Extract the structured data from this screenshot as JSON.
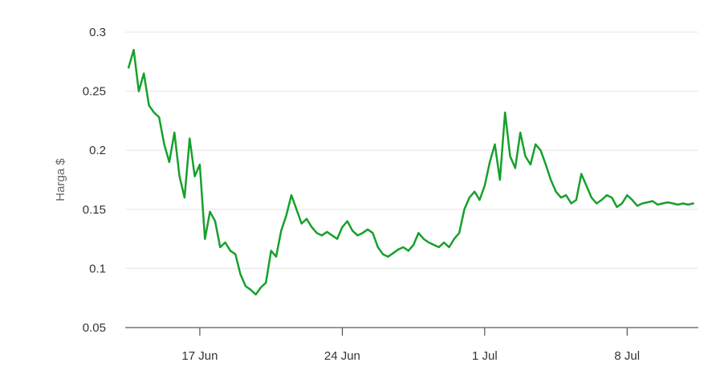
{
  "chart_data": {
    "type": "line",
    "title": "",
    "xlabel": "",
    "ylabel": "Harga $",
    "ylim": [
      0.05,
      0.3
    ],
    "yticks": [
      0.05,
      0.1,
      0.15,
      0.2,
      0.25,
      0.3
    ],
    "ytick_labels": [
      "0.05",
      "0.1",
      "0.15",
      "0.2",
      "0.25",
      "0.3"
    ],
    "xlim": [
      "2024-06-13T08:00",
      "2024-07-11T12:00"
    ],
    "xticks": [
      "2024-06-17",
      "2024-06-24",
      "2024-07-01",
      "2024-07-08"
    ],
    "xtick_labels": [
      "17 Jun",
      "24 Jun",
      "1 Jul",
      "8 Jul"
    ],
    "grid": true,
    "line_color": "#16a12b",
    "series": [
      {
        "name": "",
        "x": [
          "2024-06-13T12:00",
          "2024-06-13T18:00",
          "2024-06-14T00:00",
          "2024-06-14T06:00",
          "2024-06-14T12:00",
          "2024-06-14T18:00",
          "2024-06-15T00:00",
          "2024-06-15T06:00",
          "2024-06-15T12:00",
          "2024-06-15T18:00",
          "2024-06-16T00:00",
          "2024-06-16T06:00",
          "2024-06-16T12:00",
          "2024-06-16T18:00",
          "2024-06-17T00:00",
          "2024-06-17T06:00",
          "2024-06-17T12:00",
          "2024-06-17T18:00",
          "2024-06-18T00:00",
          "2024-06-18T06:00",
          "2024-06-18T12:00",
          "2024-06-18T18:00",
          "2024-06-19T00:00",
          "2024-06-19T06:00",
          "2024-06-19T12:00",
          "2024-06-19T18:00",
          "2024-06-20T00:00",
          "2024-06-20T06:00",
          "2024-06-20T12:00",
          "2024-06-20T18:00",
          "2024-06-21T00:00",
          "2024-06-21T06:00",
          "2024-06-21T12:00",
          "2024-06-21T18:00",
          "2024-06-22T00:00",
          "2024-06-22T06:00",
          "2024-06-22T12:00",
          "2024-06-22T18:00",
          "2024-06-23T00:00",
          "2024-06-23T06:00",
          "2024-06-23T12:00",
          "2024-06-23T18:00",
          "2024-06-24T00:00",
          "2024-06-24T06:00",
          "2024-06-24T12:00",
          "2024-06-24T18:00",
          "2024-06-25T00:00",
          "2024-06-25T06:00",
          "2024-06-25T12:00",
          "2024-06-25T18:00",
          "2024-06-26T00:00",
          "2024-06-26T06:00",
          "2024-06-26T12:00",
          "2024-06-26T18:00",
          "2024-06-27T00:00",
          "2024-06-27T06:00",
          "2024-06-27T12:00",
          "2024-06-27T18:00",
          "2024-06-28T00:00",
          "2024-06-28T06:00",
          "2024-06-28T12:00",
          "2024-06-28T18:00",
          "2024-06-29T00:00",
          "2024-06-29T06:00",
          "2024-06-29T12:00",
          "2024-06-29T18:00",
          "2024-06-30T00:00",
          "2024-06-30T06:00",
          "2024-06-30T12:00",
          "2024-06-30T18:00",
          "2024-07-01T00:00",
          "2024-07-01T06:00",
          "2024-07-01T12:00",
          "2024-07-01T18:00",
          "2024-07-02T00:00",
          "2024-07-02T06:00",
          "2024-07-02T12:00",
          "2024-07-02T18:00",
          "2024-07-03T00:00",
          "2024-07-03T06:00",
          "2024-07-03T12:00",
          "2024-07-03T18:00",
          "2024-07-04T00:00",
          "2024-07-04T06:00",
          "2024-07-04T12:00",
          "2024-07-04T18:00",
          "2024-07-05T00:00",
          "2024-07-05T06:00",
          "2024-07-05T12:00",
          "2024-07-05T18:00",
          "2024-07-06T00:00",
          "2024-07-06T06:00",
          "2024-07-06T12:00",
          "2024-07-06T18:00",
          "2024-07-07T00:00",
          "2024-07-07T06:00",
          "2024-07-07T12:00",
          "2024-07-07T18:00",
          "2024-07-08T00:00",
          "2024-07-08T06:00",
          "2024-07-08T12:00",
          "2024-07-08T18:00",
          "2024-07-09T00:00",
          "2024-07-09T06:00",
          "2024-07-09T12:00",
          "2024-07-09T18:00",
          "2024-07-10T00:00",
          "2024-07-10T06:00",
          "2024-07-10T12:00",
          "2024-07-10T18:00",
          "2024-07-11T00:00",
          "2024-07-11T06:00"
        ],
        "values": [
          0.27,
          0.285,
          0.25,
          0.265,
          0.238,
          0.232,
          0.228,
          0.205,
          0.19,
          0.215,
          0.178,
          0.16,
          0.21,
          0.178,
          0.188,
          0.125,
          0.148,
          0.14,
          0.118,
          0.122,
          0.115,
          0.112,
          0.095,
          0.085,
          0.082,
          0.078,
          0.084,
          0.088,
          0.115,
          0.11,
          0.132,
          0.145,
          0.162,
          0.15,
          0.138,
          0.142,
          0.135,
          0.13,
          0.128,
          0.131,
          0.128,
          0.125,
          0.135,
          0.14,
          0.132,
          0.128,
          0.13,
          0.133,
          0.13,
          0.118,
          0.112,
          0.11,
          0.113,
          0.116,
          0.118,
          0.115,
          0.12,
          0.13,
          0.125,
          0.122,
          0.12,
          0.118,
          0.122,
          0.118,
          0.125,
          0.13,
          0.15,
          0.16,
          0.165,
          0.158,
          0.17,
          0.19,
          0.205,
          0.175,
          0.232,
          0.195,
          0.185,
          0.215,
          0.195,
          0.188,
          0.205,
          0.2,
          0.188,
          0.175,
          0.165,
          0.16,
          0.162,
          0.155,
          0.158,
          0.18,
          0.17,
          0.16,
          0.155,
          0.158,
          0.162,
          0.16,
          0.152,
          0.155,
          0.162,
          0.158,
          0.153,
          0.155,
          0.156,
          0.157,
          0.154,
          0.155,
          0.156,
          0.155,
          0.154,
          0.155,
          0.154,
          0.155
        ]
      }
    ]
  }
}
